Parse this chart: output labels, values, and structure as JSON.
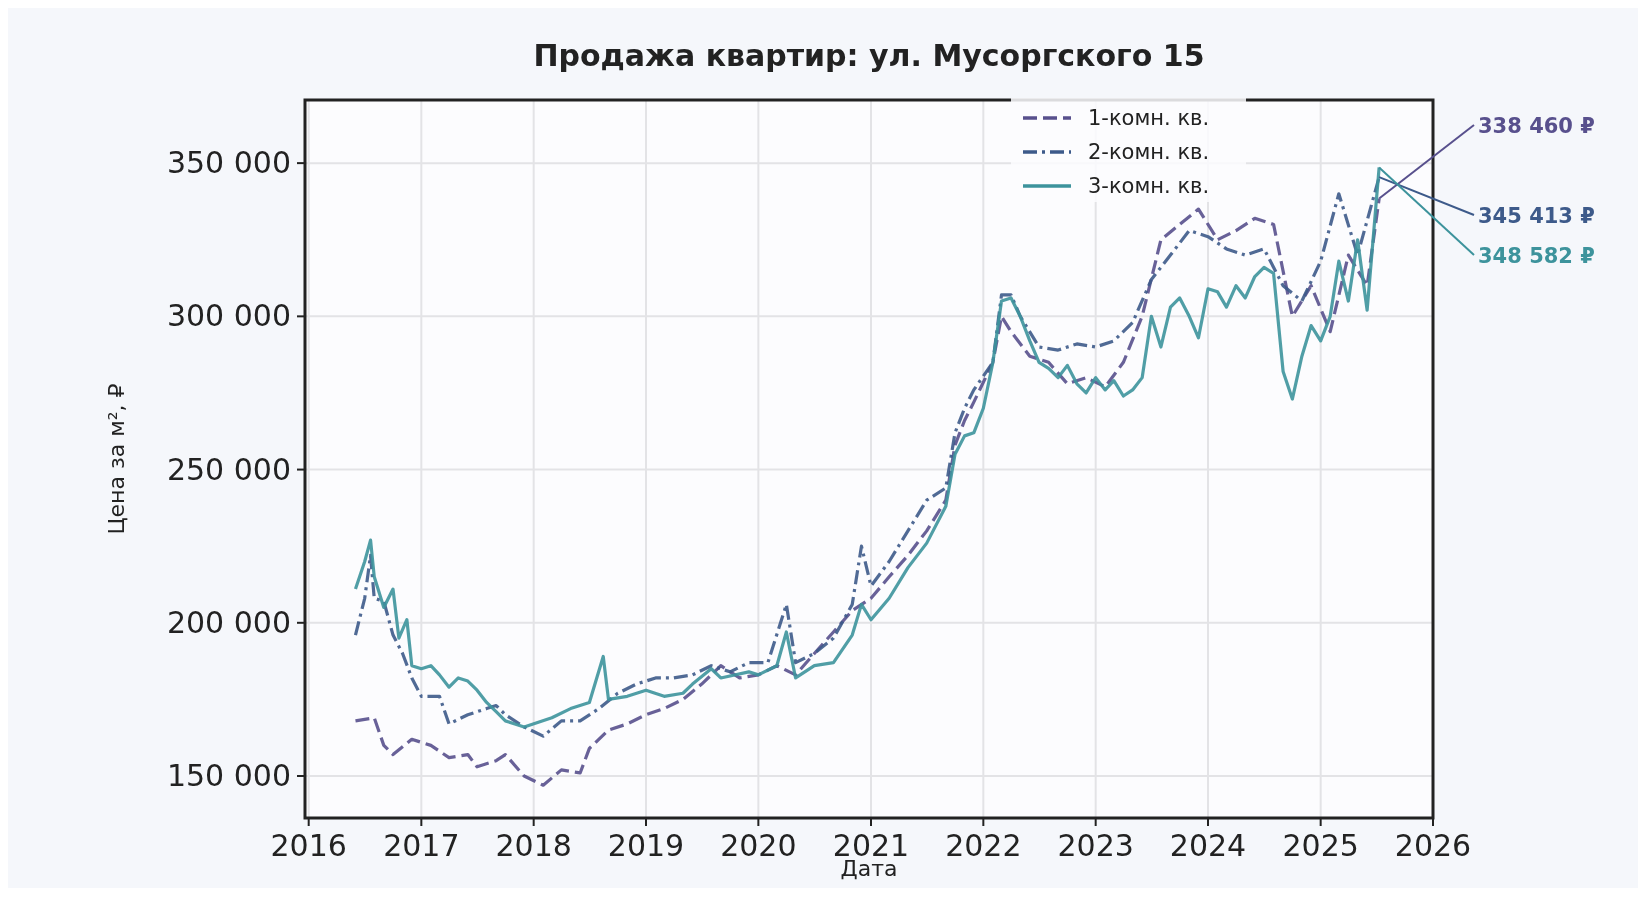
{
  "chart_data": {
    "type": "line",
    "title": "Продажа квартир: ул. Мусоргского 15",
    "xlabel": "Дата",
    "ylabel": "Цена за м², ₽",
    "xlim": [
      "2015-12-20",
      "2026-01-01"
    ],
    "ylim": [
      136300,
      370600
    ],
    "xticks": [
      "2016",
      "2017",
      "2018",
      "2019",
      "2020",
      "2021",
      "2022",
      "2023",
      "2024",
      "2025",
      "2026"
    ],
    "yticks": [
      {
        "value": 150000,
        "label": "150 000"
      },
      {
        "value": 200000,
        "label": "200 000"
      },
      {
        "value": 250000,
        "label": "250 000"
      },
      {
        "value": 300000,
        "label": "300 000"
      },
      {
        "value": 350000,
        "label": "350 000"
      }
    ],
    "grid": true,
    "legend": "top right",
    "series": [
      {
        "name": "1-комн. кв.",
        "color": "#58508d",
        "line_style": "dashed",
        "x": [
          "2016-06-01",
          "2016-08-01",
          "2016-09-01",
          "2016-10-01",
          "2016-12-01",
          "2017-02-01",
          "2017-04-01",
          "2017-06-01",
          "2017-07-01",
          "2017-09-01",
          "2017-10-01",
          "2017-12-01",
          "2018-02-01",
          "2018-04-01",
          "2018-06-01",
          "2018-07-01",
          "2018-09-01",
          "2018-11-01",
          "2019-01-01",
          "2019-03-01",
          "2019-05-01",
          "2019-07-01",
          "2019-09-01",
          "2019-11-01",
          "2020-01-01",
          "2020-03-01",
          "2020-05-01",
          "2020-07-01",
          "2020-09-01",
          "2020-11-01",
          "2021-01-01",
          "2021-03-01",
          "2021-05-01",
          "2021-07-01",
          "2021-09-01",
          "2021-10-01",
          "2021-11-01",
          "2021-12-01",
          "2022-02-01",
          "2022-03-01",
          "2022-04-01",
          "2022-06-01",
          "2022-08-01",
          "2022-10-01",
          "2022-12-01",
          "2023-02-01",
          "2023-04-01",
          "2023-06-01",
          "2023-08-01",
          "2023-10-01",
          "2023-12-01",
          "2024-02-01",
          "2024-04-01",
          "2024-06-01",
          "2024-08-01",
          "2024-10-01",
          "2024-12-01",
          "2025-02-01",
          "2025-04-01",
          "2025-06-01",
          "2025-07-10"
        ],
        "values": [
          168000,
          169000,
          160000,
          157000,
          162000,
          160000,
          156000,
          157000,
          153000,
          155000,
          157000,
          150000,
          147000,
          152000,
          151000,
          159000,
          165000,
          167000,
          170000,
          172000,
          175000,
          180000,
          186000,
          182000,
          183000,
          186000,
          183000,
          190000,
          197000,
          204000,
          208000,
          215000,
          222000,
          230000,
          240000,
          258000,
          266000,
          272000,
          285000,
          300000,
          295000,
          287000,
          285000,
          278000,
          280000,
          277000,
          285000,
          300000,
          325000,
          330000,
          335000,
          325000,
          328000,
          332000,
          330000,
          300000,
          310000,
          295000,
          320000,
          310000,
          338460
        ]
      },
      {
        "name": "2-комн. кв.",
        "color": "#3d5a8a",
        "line_style": "dashdot",
        "x": [
          "2016-06-01",
          "2016-07-01",
          "2016-07-20",
          "2016-08-01",
          "2016-09-01",
          "2016-10-01",
          "2016-11-01",
          "2016-12-01",
          "2017-01-01",
          "2017-03-01",
          "2017-04-01",
          "2017-06-01",
          "2017-08-01",
          "2017-09-01",
          "2017-10-01",
          "2017-12-01",
          "2018-02-01",
          "2018-04-01",
          "2018-06-01",
          "2018-08-01",
          "2018-10-01",
          "2018-12-01",
          "2019-02-01",
          "2019-04-01",
          "2019-06-01",
          "2019-08-01",
          "2019-10-01",
          "2019-12-01",
          "2020-02-01",
          "2020-04-01",
          "2020-05-01",
          "2020-07-01",
          "2020-09-01",
          "2020-11-01",
          "2020-12-01",
          "2021-01-01",
          "2021-03-01",
          "2021-05-01",
          "2021-07-01",
          "2021-09-01",
          "2021-10-01",
          "2021-11-01",
          "2021-12-01",
          "2022-02-01",
          "2022-03-01",
          "2022-04-01",
          "2022-05-01",
          "2022-07-01",
          "2022-09-01",
          "2022-11-01",
          "2023-01-01",
          "2023-03-01",
          "2023-05-01",
          "2023-07-01",
          "2023-09-01",
          "2023-11-01",
          "2024-01-01",
          "2024-03-01",
          "2024-05-01",
          "2024-07-01",
          "2024-09-01",
          "2024-11-01",
          "2025-01-01",
          "2025-03-01",
          "2025-05-01",
          "2025-07-10"
        ],
        "values": [
          196000,
          208000,
          222000,
          208000,
          207000,
          196000,
          190000,
          182000,
          176000,
          176000,
          167000,
          170000,
          172000,
          173000,
          170000,
          166000,
          163000,
          168000,
          168000,
          172000,
          177000,
          180000,
          182000,
          182000,
          183000,
          186000,
          184000,
          187000,
          187000,
          206000,
          187000,
          190000,
          195000,
          206000,
          225000,
          212000,
          220000,
          230000,
          240000,
          244000,
          262000,
          270000,
          276000,
          285000,
          307000,
          307000,
          300000,
          290000,
          289000,
          291000,
          290000,
          292000,
          298000,
          312000,
          320000,
          328000,
          326000,
          322000,
          320000,
          322000,
          310000,
          305000,
          318000,
          340000,
          320000,
          345413
        ]
      },
      {
        "name": "3-комн. кв.",
        "color": "#3d939c",
        "line_style": "solid",
        "x": [
          "2016-06-01",
          "2016-07-01",
          "2016-07-20",
          "2016-08-01",
          "2016-09-01",
          "2016-10-01",
          "2016-10-20",
          "2016-11-15",
          "2016-12-01",
          "2017-01-01",
          "2017-02-01",
          "2017-03-01",
          "2017-04-01",
          "2017-05-01",
          "2017-06-01",
          "2017-07-01",
          "2017-08-01",
          "2017-09-01",
          "2017-10-01",
          "2017-11-01",
          "2017-12-01",
          "2018-03-01",
          "2018-05-01",
          "2018-07-01",
          "2018-08-15",
          "2018-09-01",
          "2018-11-01",
          "2019-01-01",
          "2019-03-01",
          "2019-05-01",
          "2019-06-01",
          "2019-08-01",
          "2019-09-01",
          "2019-12-01",
          "2020-01-01",
          "2020-03-01",
          "2020-04-01",
          "2020-05-01",
          "2020-07-01",
          "2020-09-01",
          "2020-11-01",
          "2020-12-01",
          "2021-01-01",
          "2021-03-01",
          "2021-05-01",
          "2021-07-01",
          "2021-09-01",
          "2021-10-01",
          "2021-11-01",
          "2021-12-01",
          "2022-01-01",
          "2022-02-01",
          "2022-03-01",
          "2022-04-01",
          "2022-05-01",
          "2022-06-01",
          "2022-07-01",
          "2022-08-01",
          "2022-09-01",
          "2022-10-01",
          "2022-11-01",
          "2022-12-01",
          "2023-01-01",
          "2023-02-01",
          "2023-03-01",
          "2023-04-01",
          "2023-05-01",
          "2023-06-01",
          "2023-07-01",
          "2023-08-01",
          "2023-09-01",
          "2023-10-01",
          "2023-11-01",
          "2023-12-01",
          "2024-01-01",
          "2024-02-01",
          "2024-03-01",
          "2024-04-01",
          "2024-05-01",
          "2024-06-01",
          "2024-07-01",
          "2024-08-01",
          "2024-09-01",
          "2024-10-01",
          "2024-11-01",
          "2024-12-01",
          "2025-01-01",
          "2025-02-01",
          "2025-03-01",
          "2025-04-01",
          "2025-05-01",
          "2025-06-01",
          "2025-07-10"
        ],
        "values": [
          211000,
          220000,
          227000,
          215000,
          205000,
          211000,
          195000,
          201000,
          186000,
          185000,
          186000,
          183000,
          179000,
          182000,
          181000,
          178000,
          174000,
          171000,
          168000,
          167000,
          166000,
          169000,
          172000,
          174000,
          189000,
          175000,
          176000,
          178000,
          176000,
          177000,
          180000,
          185000,
          182000,
          184000,
          183000,
          186000,
          197000,
          182000,
          186000,
          187000,
          196000,
          206000,
          201000,
          208000,
          218000,
          226000,
          238000,
          255000,
          261000,
          262000,
          270000,
          285000,
          305000,
          306000,
          300000,
          292000,
          285000,
          283000,
          280000,
          284000,
          278000,
          275000,
          280000,
          276000,
          279000,
          274000,
          276000,
          280000,
          300000,
          290000,
          303000,
          306000,
          300000,
          293000,
          309000,
          308000,
          303000,
          310000,
          306000,
          313000,
          316000,
          314000,
          282000,
          273000,
          287000,
          297000,
          292000,
          300000,
          318000,
          305000,
          325000,
          302000,
          348582
        ]
      }
    ],
    "annotations": [
      {
        "text": "338 460 ₽",
        "x": "2025-07-10",
        "y": 338460
      },
      {
        "text": "345 413 ₽",
        "x": "2025-07-10",
        "y": 345413
      },
      {
        "text": "348 582 ₽",
        "x": "2025-07-10",
        "y": 348582
      }
    ]
  }
}
